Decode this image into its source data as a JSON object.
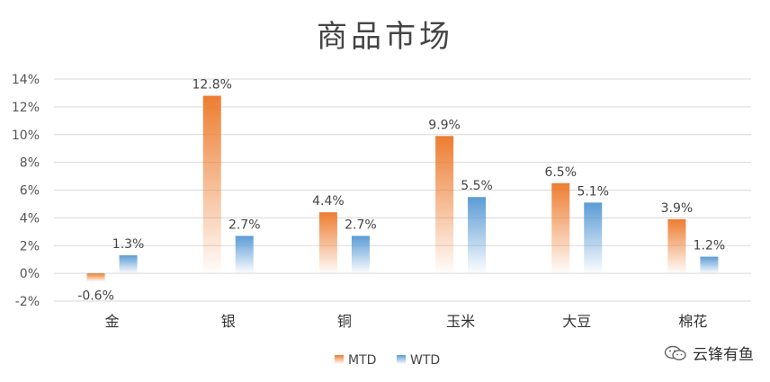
{
  "watermark": "云锋有鱼",
  "colors": {
    "mtd": "#ED7D31",
    "wtd": "#5B9BD5"
  },
  "chart_data": {
    "type": "bar",
    "title": "商品市场",
    "categories": [
      "金",
      "银",
      "铜",
      "玉米",
      "大豆",
      "棉花"
    ],
    "series": [
      {
        "name": "MTD",
        "values": [
          -0.6,
          12.8,
          4.4,
          9.9,
          6.5,
          3.9
        ],
        "labels": [
          "-0.6%",
          "12.8%",
          "4.4%",
          "9.9%",
          "6.5%",
          "3.9%"
        ]
      },
      {
        "name": "WTD",
        "values": [
          1.3,
          2.7,
          2.7,
          5.5,
          5.1,
          1.2
        ],
        "labels": [
          "1.3%",
          "2.7%",
          "2.7%",
          "5.5%",
          "5.1%",
          "1.2%"
        ]
      }
    ],
    "ylim": [
      -2,
      14
    ],
    "yticks": [
      -2,
      0,
      2,
      4,
      6,
      8,
      10,
      12,
      14
    ],
    "ytick_labels": [
      "-2%",
      "0%",
      "2%",
      "4%",
      "6%",
      "8%",
      "10%",
      "12%",
      "14%"
    ],
    "grid": true,
    "legend": "bottom"
  }
}
